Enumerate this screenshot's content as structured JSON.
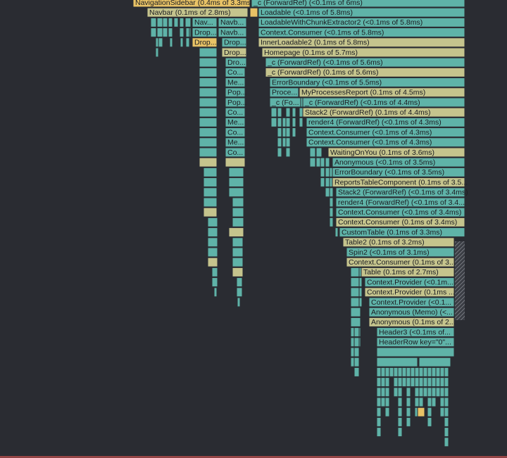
{
  "nodes": [
    {
      "label": "NavigationSidebar (0.4ms of 3.3ms)"
    },
    {
      "label": "_c (ForwardRef) (<0.1ms of 6ms)"
    },
    {
      "label": "Navbar (0.1ms of 2.8ms)"
    },
    {
      "label": "Loadable (<0.1ms of 5.8ms)"
    },
    {
      "label": "Nav..."
    },
    {
      "label": "Navb..."
    },
    {
      "label": "LoadableWithChunkExtractor2 (<0.1ms of 5.8ms)"
    },
    {
      "label": "Drop..."
    },
    {
      "label": "Navb..."
    },
    {
      "label": "Context.Consumer (<0.1ms of 5.8ms)"
    },
    {
      "label": "Drop..."
    },
    {
      "label": "Drop..."
    },
    {
      "label": "InnerLoadable2 (0.1ms of 5.8ms)"
    },
    {
      "label": "Drop..."
    },
    {
      "label": "Homepage (0.1ms of 5.7ms)"
    },
    {
      "label": "Dro..."
    },
    {
      "label": "_c (ForwardRef) (<0.1ms of 5.6ms)"
    },
    {
      "label": "Co..."
    },
    {
      "label": "_c (ForwardRef) (0.1ms of 5.6ms)"
    },
    {
      "label": "Me..."
    },
    {
      "label": "ErrorBoundary (<0.1ms of 5.5ms)"
    },
    {
      "label": "Pop..."
    },
    {
      "label": "Proce..."
    },
    {
      "label": "MyProcessesReport (0.1ms of 4.5ms)"
    },
    {
      "label": "Pop..."
    },
    {
      "label": "_c (Fo..."
    },
    {
      "label": "_c (ForwardRef) (<0.1ms of 4.4ms)"
    },
    {
      "label": "Co..."
    },
    {
      "label": "Stack2 (ForwardRef) (0.1ms of 4.4ms)"
    },
    {
      "label": "Me..."
    },
    {
      "label": "render4 (ForwardRef) (<0.1ms of 4.3ms)"
    },
    {
      "label": "Co..."
    },
    {
      "label": "Context.Consumer (<0.1ms of 4.3ms)"
    },
    {
      "label": "Me..."
    },
    {
      "label": "Context.Consumer (<0.1ms of 4.3ms)"
    },
    {
      "label": "Co..."
    },
    {
      "label": "WaitingOnYou (0.1ms of 3.6ms)"
    },
    {
      "label": "Anonymous (<0.1ms of 3.5ms)"
    },
    {
      "label": "ErrorBoundary (<0.1ms of 3.5ms)"
    },
    {
      "label": "ReportsTableComponent (0.1ms of 3.5..."
    },
    {
      "label": "Stack2 (ForwardRef) (<0.1ms of 3.4ms)"
    },
    {
      "label": "render4 (ForwardRef) (<0.1ms of 3.4..."
    },
    {
      "label": "Context.Consumer (<0.1ms of 3.4ms)"
    },
    {
      "label": "Context.Consumer (0.1ms of 3.4ms)"
    },
    {
      "label": "CustomTable (0.1ms of 3.3ms)"
    },
    {
      "label": "Table2 (0.1ms of 3.2ms)"
    },
    {
      "label": "Spin2 (<0.1ms of 3.1ms)"
    },
    {
      "label": "Context.Consumer (0.1ms of 3..."
    },
    {
      "label": "Table (0.1ms of 2.7ms)"
    },
    {
      "label": "Context.Provider (<0.1m..."
    },
    {
      "label": "Context.Provider (0.1ms ..."
    },
    {
      "label": "Context.Provider (<0.1..."
    },
    {
      "label": "Anonymous (Memo) (<..."
    },
    {
      "label": "Anonymous (0.1ms of 2..."
    },
    {
      "label": "Header3 (<0.1ms of..."
    },
    {
      "label": "HeaderRow key=\"0\"..."
    }
  ]
}
